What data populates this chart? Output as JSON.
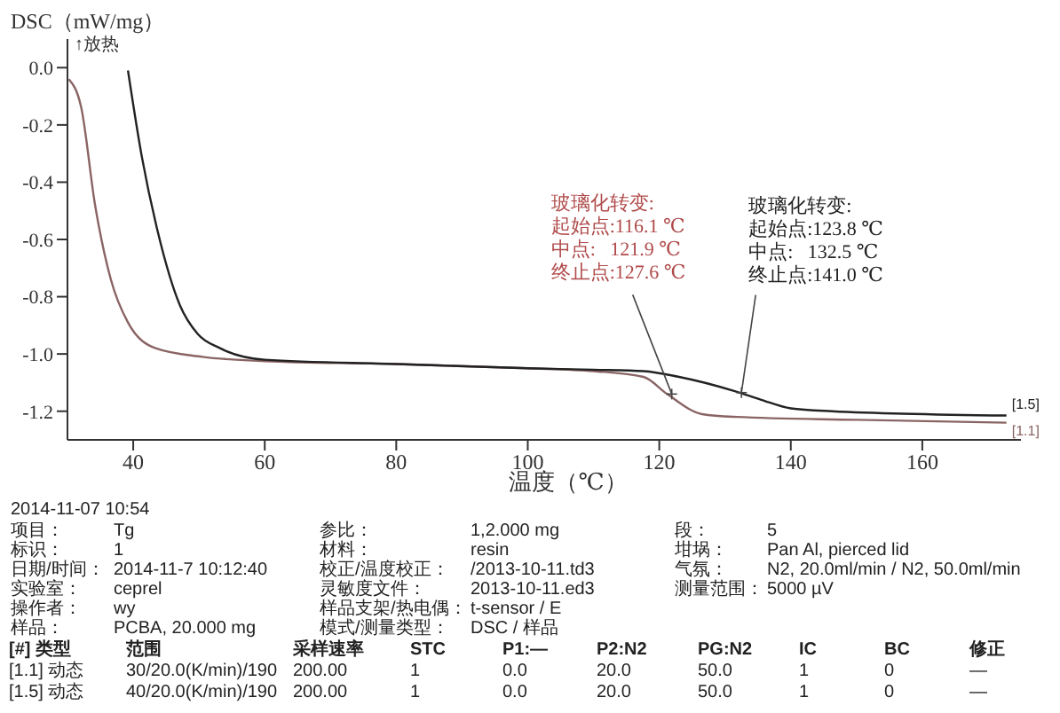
{
  "chart_data": {
    "type": "line",
    "xlabel": "温度（℃）",
    "ylabel": "DSC（mW/mg）",
    "xlim": [
      30,
      175
    ],
    "xticks": [
      40,
      60,
      80,
      100,
      120,
      140,
      160
    ],
    "ylim": [
      -1.3,
      0.1
    ],
    "yticks": [
      {
        "value": 0,
        "label": "0.0"
      },
      {
        "value": -0.2,
        "label": "-0.2"
      },
      {
        "value": -0.4,
        "label": "-0.4"
      },
      {
        "value": -0.6,
        "label": "-0.6"
      },
      {
        "value": -0.8,
        "label": "-0.8"
      },
      {
        "value": -1,
        "label": "-1.0"
      },
      {
        "value": -1.2,
        "label": "-1.2"
      }
    ],
    "grid": false,
    "legend": false,
    "series": [
      {
        "name": "[1.1]",
        "color": "#8a6464",
        "x": [
          30.2,
          32.1,
          34.2,
          36.6,
          39.2,
          43.4,
          50.5,
          60,
          80,
          100,
          110,
          117.6,
          121.2,
          126.5,
          131.8,
          150,
          172.8
        ],
        "values": [
          -0.04,
          -0.14,
          -0.48,
          -0.74,
          -0.89,
          -0.98,
          -1.01,
          -1.025,
          -1.035,
          -1.05,
          -1.06,
          -1.08,
          -1.14,
          -1.21,
          -1.22,
          -1.23,
          -1.24
        ]
      },
      {
        "name": "[1.5]",
        "color": "#222222",
        "x": [
          39.2,
          41.3,
          43.7,
          47.1,
          49.8,
          53.2,
          60,
          80,
          100,
          110,
          117.6,
          123,
          131.5,
          135.5,
          140,
          146.3,
          172.8
        ],
        "values": [
          -0.01,
          -0.31,
          -0.57,
          -0.83,
          -0.93,
          -0.98,
          -1.02,
          -1.035,
          -1.05,
          -1.055,
          -1.06,
          -1.08,
          -1.13,
          -1.16,
          -1.19,
          -1.2,
          -1.215
        ]
      }
    ],
    "annotations": [
      {
        "text": "玻璃化转变:\n起始点:116.1 ℃\n中点:   121.9 ℃\n终止点:127.6 ℃",
        "x": 121.9,
        "y": -1.14
      },
      {
        "text": "玻璃化转变:\n起始点:123.8 ℃\n中点:   132.5 ℃\n终止点:141.0 ℃",
        "x": 132.5,
        "y": -1.135
      },
      "↑放热",
      "2014-11-07 10:54",
      "项目：",
      "Tg",
      "标识：",
      "1",
      "日期/时间：",
      "2014-11-7 10:12:40",
      "实验室：",
      "ceprel",
      "操作者：",
      "wy",
      "样品：",
      "PCBA, 20.000 mg",
      "参比：",
      "1,2.000 mg",
      "材料：",
      "resin",
      "校正/温度校正：",
      "/2013-10-11.td3",
      "灵敏度文件：",
      "2013-10-11.ed3",
      "样品支架/热电偶：",
      "t-sensor / E",
      "模式/测量类型：",
      "DSC / 样品",
      "段：",
      "5",
      "坩埚：",
      "Pan Al, pierced lid",
      "气氛：",
      "N2, 20.0ml/min / N2, 50.0ml/min",
      "测量范围：",
      "5000 µV",
      "[#] 类型",
      "范围",
      "采样速率",
      "STC",
      "P1:—",
      "P2:N2",
      "PG:N2",
      "IC",
      "BC",
      "修正",
      "[1.1] 动态",
      "30/20.0(K/min)/190",
      "200.00",
      "1",
      "0.0",
      "20.0",
      "50.0",
      "1",
      "0",
      "—",
      "[1.5] 动态",
      "40/20.0(K/min)/190",
      "200.00",
      "1",
      "0.0",
      "20.0",
      "50.0",
      "1",
      "0",
      "—"
    ]
  }
}
